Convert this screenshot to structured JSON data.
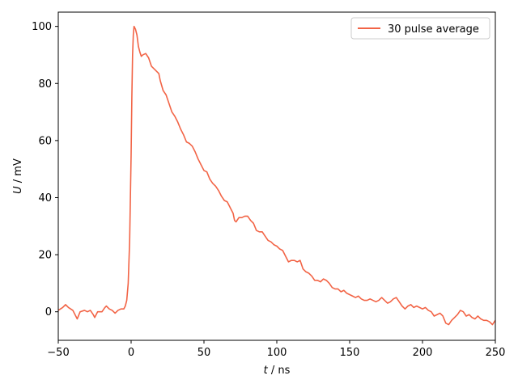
{
  "chart_data": {
    "type": "line",
    "title": "",
    "xlabel_var": "t",
    "xlabel_unit": " / ns",
    "ylabel_var": "U",
    "ylabel_unit": " / mV",
    "xlim": [
      -50,
      250
    ],
    "ylim": [
      -10,
      105
    ],
    "x_ticks": [
      -50,
      0,
      50,
      100,
      150,
      200,
      250
    ],
    "y_ticks": [
      0,
      20,
      40,
      60,
      80,
      100
    ],
    "x_tick_labels": [
      "−50",
      "0",
      "50",
      "100",
      "150",
      "200",
      "250"
    ],
    "y_tick_labels": [
      "0",
      "20",
      "40",
      "60",
      "80",
      "100"
    ],
    "grid": false,
    "legend_position": "top-right",
    "series": [
      {
        "name": "30 pulse average",
        "color": "#f26446",
        "points": [
          [
            -50,
            0.5
          ],
          [
            -47,
            1.5
          ],
          [
            -45,
            2.5
          ],
          [
            -43,
            1.5
          ],
          [
            -40,
            0.5
          ],
          [
            -38,
            -1.5
          ],
          [
            -37,
            -2.5
          ],
          [
            -35,
            0.0
          ],
          [
            -32,
            0.5
          ],
          [
            -30,
            0.0
          ],
          [
            -28,
            0.5
          ],
          [
            -26,
            -1.0
          ],
          [
            -25,
            -2.0
          ],
          [
            -23,
            0.0
          ],
          [
            -20,
            0.0
          ],
          [
            -18,
            1.5
          ],
          [
            -17,
            2.0
          ],
          [
            -15,
            1.0
          ],
          [
            -13,
            0.5
          ],
          [
            -11,
            -0.5
          ],
          [
            -9,
            0.5
          ],
          [
            -7,
            1.0
          ],
          [
            -5,
            1.0
          ],
          [
            -4,
            2.0
          ],
          [
            -3,
            4.0
          ],
          [
            -2,
            10.0
          ],
          [
            -1,
            25.0
          ],
          [
            0,
            55.0
          ],
          [
            0.5,
            75.0
          ],
          [
            1,
            90.0
          ],
          [
            1.5,
            97.0
          ],
          [
            2,
            100.0
          ],
          [
            3,
            99.0
          ],
          [
            4,
            97.0
          ],
          [
            5,
            93.0
          ],
          [
            6,
            91.0
          ],
          [
            7,
            89.5
          ],
          [
            8,
            90.0
          ],
          [
            10,
            90.5
          ],
          [
            12,
            89.0
          ],
          [
            14,
            86.0
          ],
          [
            16,
            85.0
          ],
          [
            18,
            84.0
          ],
          [
            19,
            83.5
          ],
          [
            20,
            81.0
          ],
          [
            22,
            77.5
          ],
          [
            24,
            76.0
          ],
          [
            26,
            73.0
          ],
          [
            28,
            70.0
          ],
          [
            30,
            68.5
          ],
          [
            32,
            66.5
          ],
          [
            34,
            64.0
          ],
          [
            36,
            62.0
          ],
          [
            38,
            59.5
          ],
          [
            40,
            59.0
          ],
          [
            42,
            58.0
          ],
          [
            44,
            56.0
          ],
          [
            46,
            53.5
          ],
          [
            48,
            51.5
          ],
          [
            50,
            49.5
          ],
          [
            52,
            49.0
          ],
          [
            54,
            46.5
          ],
          [
            56,
            45.0
          ],
          [
            58,
            44.0
          ],
          [
            60,
            42.5
          ],
          [
            62,
            40.5
          ],
          [
            64,
            39.0
          ],
          [
            66,
            38.5
          ],
          [
            68,
            36.5
          ],
          [
            70,
            34.5
          ],
          [
            71,
            32.0
          ],
          [
            72,
            31.5
          ],
          [
            74,
            33.0
          ],
          [
            76,
            33.0
          ],
          [
            78,
            33.5
          ],
          [
            80,
            33.5
          ],
          [
            82,
            32.0
          ],
          [
            84,
            31.0
          ],
          [
            86,
            28.5
          ],
          [
            88,
            28.0
          ],
          [
            90,
            28.0
          ],
          [
            92,
            26.5
          ],
          [
            94,
            25.0
          ],
          [
            96,
            24.5
          ],
          [
            98,
            23.5
          ],
          [
            100,
            23.0
          ],
          [
            102,
            22.0
          ],
          [
            104,
            21.5
          ],
          [
            106,
            19.5
          ],
          [
            108,
            17.5
          ],
          [
            110,
            18.0
          ],
          [
            112,
            18.0
          ],
          [
            114,
            17.5
          ],
          [
            116,
            18.0
          ],
          [
            118,
            15.0
          ],
          [
            120,
            14.0
          ],
          [
            122,
            13.5
          ],
          [
            124,
            12.5
          ],
          [
            126,
            11.0
          ],
          [
            128,
            11.0
          ],
          [
            130,
            10.5
          ],
          [
            132,
            11.5
          ],
          [
            134,
            11.0
          ],
          [
            136,
            10.0
          ],
          [
            138,
            8.5
          ],
          [
            140,
            8.0
          ],
          [
            142,
            8.0
          ],
          [
            144,
            7.0
          ],
          [
            146,
            7.5
          ],
          [
            148,
            6.5
          ],
          [
            150,
            6.0
          ],
          [
            152,
            5.5
          ],
          [
            154,
            5.0
          ],
          [
            156,
            5.5
          ],
          [
            158,
            4.5
          ],
          [
            160,
            4.0
          ],
          [
            162,
            4.0
          ],
          [
            164,
            4.5
          ],
          [
            166,
            4.0
          ],
          [
            168,
            3.5
          ],
          [
            170,
            4.0
          ],
          [
            172,
            5.0
          ],
          [
            174,
            4.0
          ],
          [
            176,
            3.0
          ],
          [
            178,
            3.5
          ],
          [
            180,
            4.5
          ],
          [
            182,
            5.0
          ],
          [
            184,
            3.5
          ],
          [
            186,
            2.0
          ],
          [
            188,
            1.0
          ],
          [
            190,
            2.0
          ],
          [
            192,
            2.5
          ],
          [
            194,
            1.5
          ],
          [
            196,
            2.0
          ],
          [
            198,
            1.5
          ],
          [
            200,
            1.0
          ],
          [
            202,
            1.5
          ],
          [
            204,
            0.5
          ],
          [
            206,
            0.0
          ],
          [
            208,
            -1.5
          ],
          [
            210,
            -1.0
          ],
          [
            212,
            -0.5
          ],
          [
            214,
            -1.5
          ],
          [
            216,
            -4.0
          ],
          [
            218,
            -4.5
          ],
          [
            220,
            -3.0
          ],
          [
            222,
            -2.0
          ],
          [
            224,
            -1.0
          ],
          [
            226,
            0.5
          ],
          [
            228,
            0.0
          ],
          [
            230,
            -1.5
          ],
          [
            232,
            -1.0
          ],
          [
            234,
            -2.0
          ],
          [
            236,
            -2.5
          ],
          [
            238,
            -1.5
          ],
          [
            240,
            -2.5
          ],
          [
            242,
            -3.0
          ],
          [
            244,
            -3.0
          ],
          [
            246,
            -3.5
          ],
          [
            248,
            -4.5
          ],
          [
            250,
            -3.0
          ]
        ]
      }
    ]
  }
}
